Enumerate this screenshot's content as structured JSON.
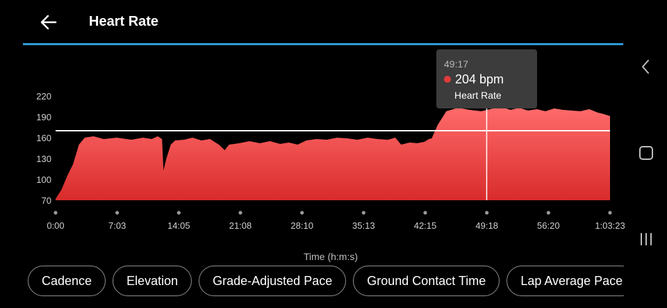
{
  "header": {
    "title": "Heart Rate",
    "back_icon": "arrow-left-icon"
  },
  "colors": {
    "accent_line": "#2e9bd6",
    "series_fill_top": "#ff6b6b",
    "series_fill_bottom": "#d92b2b",
    "reference_line": "#ffffff"
  },
  "tooltip": {
    "time": "49:17",
    "value": "204 bpm",
    "series": "Heart Rate"
  },
  "chart_data": {
    "type": "area",
    "series": [
      {
        "name": "Heart Rate",
        "unit": "bpm"
      }
    ],
    "xlabel": "Time (h:m:s)",
    "ylabel": "",
    "x_ticks": [
      "0:00",
      "7:03",
      "14:05",
      "21:08",
      "28:10",
      "35:13",
      "42:15",
      "49:18",
      "56:20",
      "1:03:23"
    ],
    "y_ticks": [
      70,
      100,
      130,
      160,
      190,
      220
    ],
    "ylim": [
      70,
      220
    ],
    "xlim_seconds": [
      0,
      3803
    ],
    "x_seconds": [
      0,
      40,
      80,
      120,
      160,
      200,
      260,
      330,
      420,
      520,
      600,
      660,
      700,
      730,
      740,
      760,
      790,
      820,
      880,
      940,
      1000,
      1060,
      1120,
      1160,
      1190,
      1260,
      1330,
      1400,
      1470,
      1540,
      1600,
      1660,
      1720,
      1790,
      1860,
      1930,
      2000,
      2070,
      2140,
      2210,
      2280,
      2330,
      2370,
      2430,
      2480,
      2530,
      2560,
      2580,
      2620,
      2680,
      2760,
      2840,
      2920,
      3000,
      3060,
      3120,
      3180,
      3240,
      3300,
      3360,
      3420,
      3480,
      3540,
      3600,
      3660,
      3720,
      3760,
      3803
    ],
    "values": [
      72,
      85,
      105,
      122,
      150,
      160,
      162,
      158,
      160,
      157,
      160,
      158,
      162,
      158,
      113,
      130,
      150,
      156,
      157,
      160,
      156,
      158,
      150,
      142,
      150,
      152,
      155,
      152,
      155,
      151,
      153,
      150,
      156,
      158,
      157,
      160,
      159,
      157,
      160,
      158,
      157,
      160,
      150,
      153,
      152,
      154,
      158,
      159,
      178,
      198,
      203,
      200,
      198,
      202,
      204,
      200,
      203,
      199,
      201,
      198,
      202,
      200,
      199,
      198,
      201,
      196,
      194,
      191
    ],
    "reference_line": {
      "value": 170
    },
    "selected": {
      "x": "49:17",
      "value": 204
    }
  },
  "chips": [
    "Cadence",
    "Elevation",
    "Grade-Adjusted Pace",
    "Ground Contact Time",
    "Lap Average Pace"
  ],
  "navbar": {
    "back": "chevron-left-icon",
    "home": "square-icon",
    "recents": "recents-icon"
  }
}
